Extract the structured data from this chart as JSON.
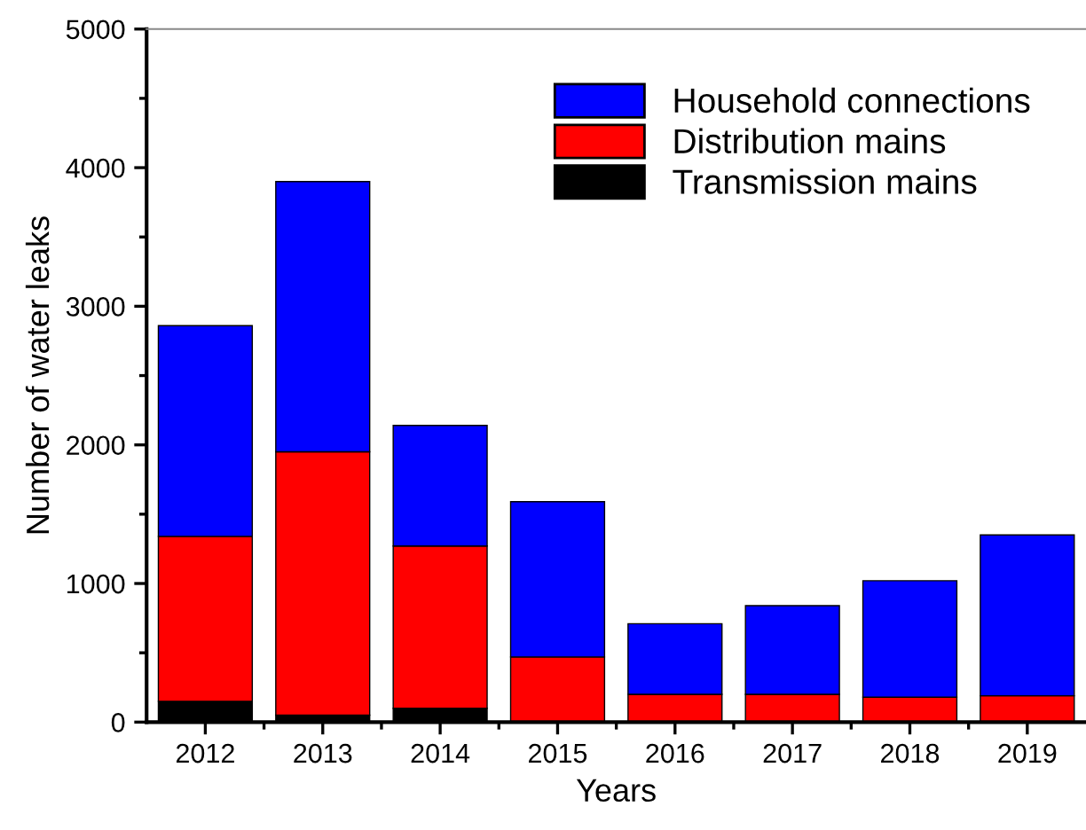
{
  "chart_data": {
    "type": "bar",
    "stacked": true,
    "xlabel": "Years",
    "ylabel": "Number of water leaks",
    "categories": [
      "2012",
      "2013",
      "2014",
      "2015",
      "2016",
      "2017",
      "2018",
      "2019"
    ],
    "series": [
      {
        "name": "Transmission mains",
        "color": "#000000",
        "values": [
          150,
          50,
          100,
          0,
          0,
          0,
          0,
          0
        ]
      },
      {
        "name": "Distribution mains",
        "color": "#ff0000",
        "values": [
          1190,
          1900,
          1170,
          470,
          200,
          200,
          180,
          190
        ]
      },
      {
        "name": "Household connections",
        "color": "#0000ff",
        "values": [
          1520,
          1950,
          870,
          1120,
          510,
          640,
          840,
          1160
        ]
      }
    ],
    "ylim": [
      0,
      5000
    ],
    "yticks": [
      0,
      1000,
      2000,
      3000,
      4000,
      5000
    ],
    "grid": false,
    "legend": "top right"
  }
}
